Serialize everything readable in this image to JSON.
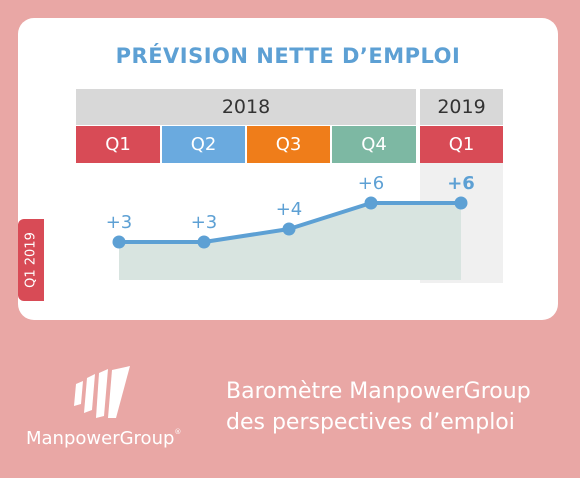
{
  "title": "PRÉVISION NETTE D’EMPLOI",
  "side_label": "Q1 2019",
  "years": [
    {
      "label": "2018"
    },
    {
      "label": "2019"
    }
  ],
  "quarters": [
    {
      "label": "Q1",
      "color": "#d84b56"
    },
    {
      "label": "Q2",
      "color": "#6aaadf"
    },
    {
      "label": "Q3",
      "color": "#ef7d1a"
    },
    {
      "label": "Q4",
      "color": "#7db8a3"
    },
    {
      "label": "Q1",
      "color": "#d84b56"
    }
  ],
  "chart_data": {
    "type": "area",
    "categories": [
      "Q1 2018",
      "Q2 2018",
      "Q3 2018",
      "Q4 2018",
      "Q1 2019"
    ],
    "values": [
      3,
      3,
      4,
      6,
      6
    ],
    "data_labels": [
      "+3",
      "+3",
      "+4",
      "+6",
      "+6"
    ],
    "line_color": "#5da0d4",
    "fill_color": "#d8e4e0",
    "highlight_index": 4
  },
  "brand": {
    "name": "ManpowerGroup",
    "tagline_line1": "Baromètre ManpowerGroup",
    "tagline_line2": "des perspectives d’emploi"
  }
}
